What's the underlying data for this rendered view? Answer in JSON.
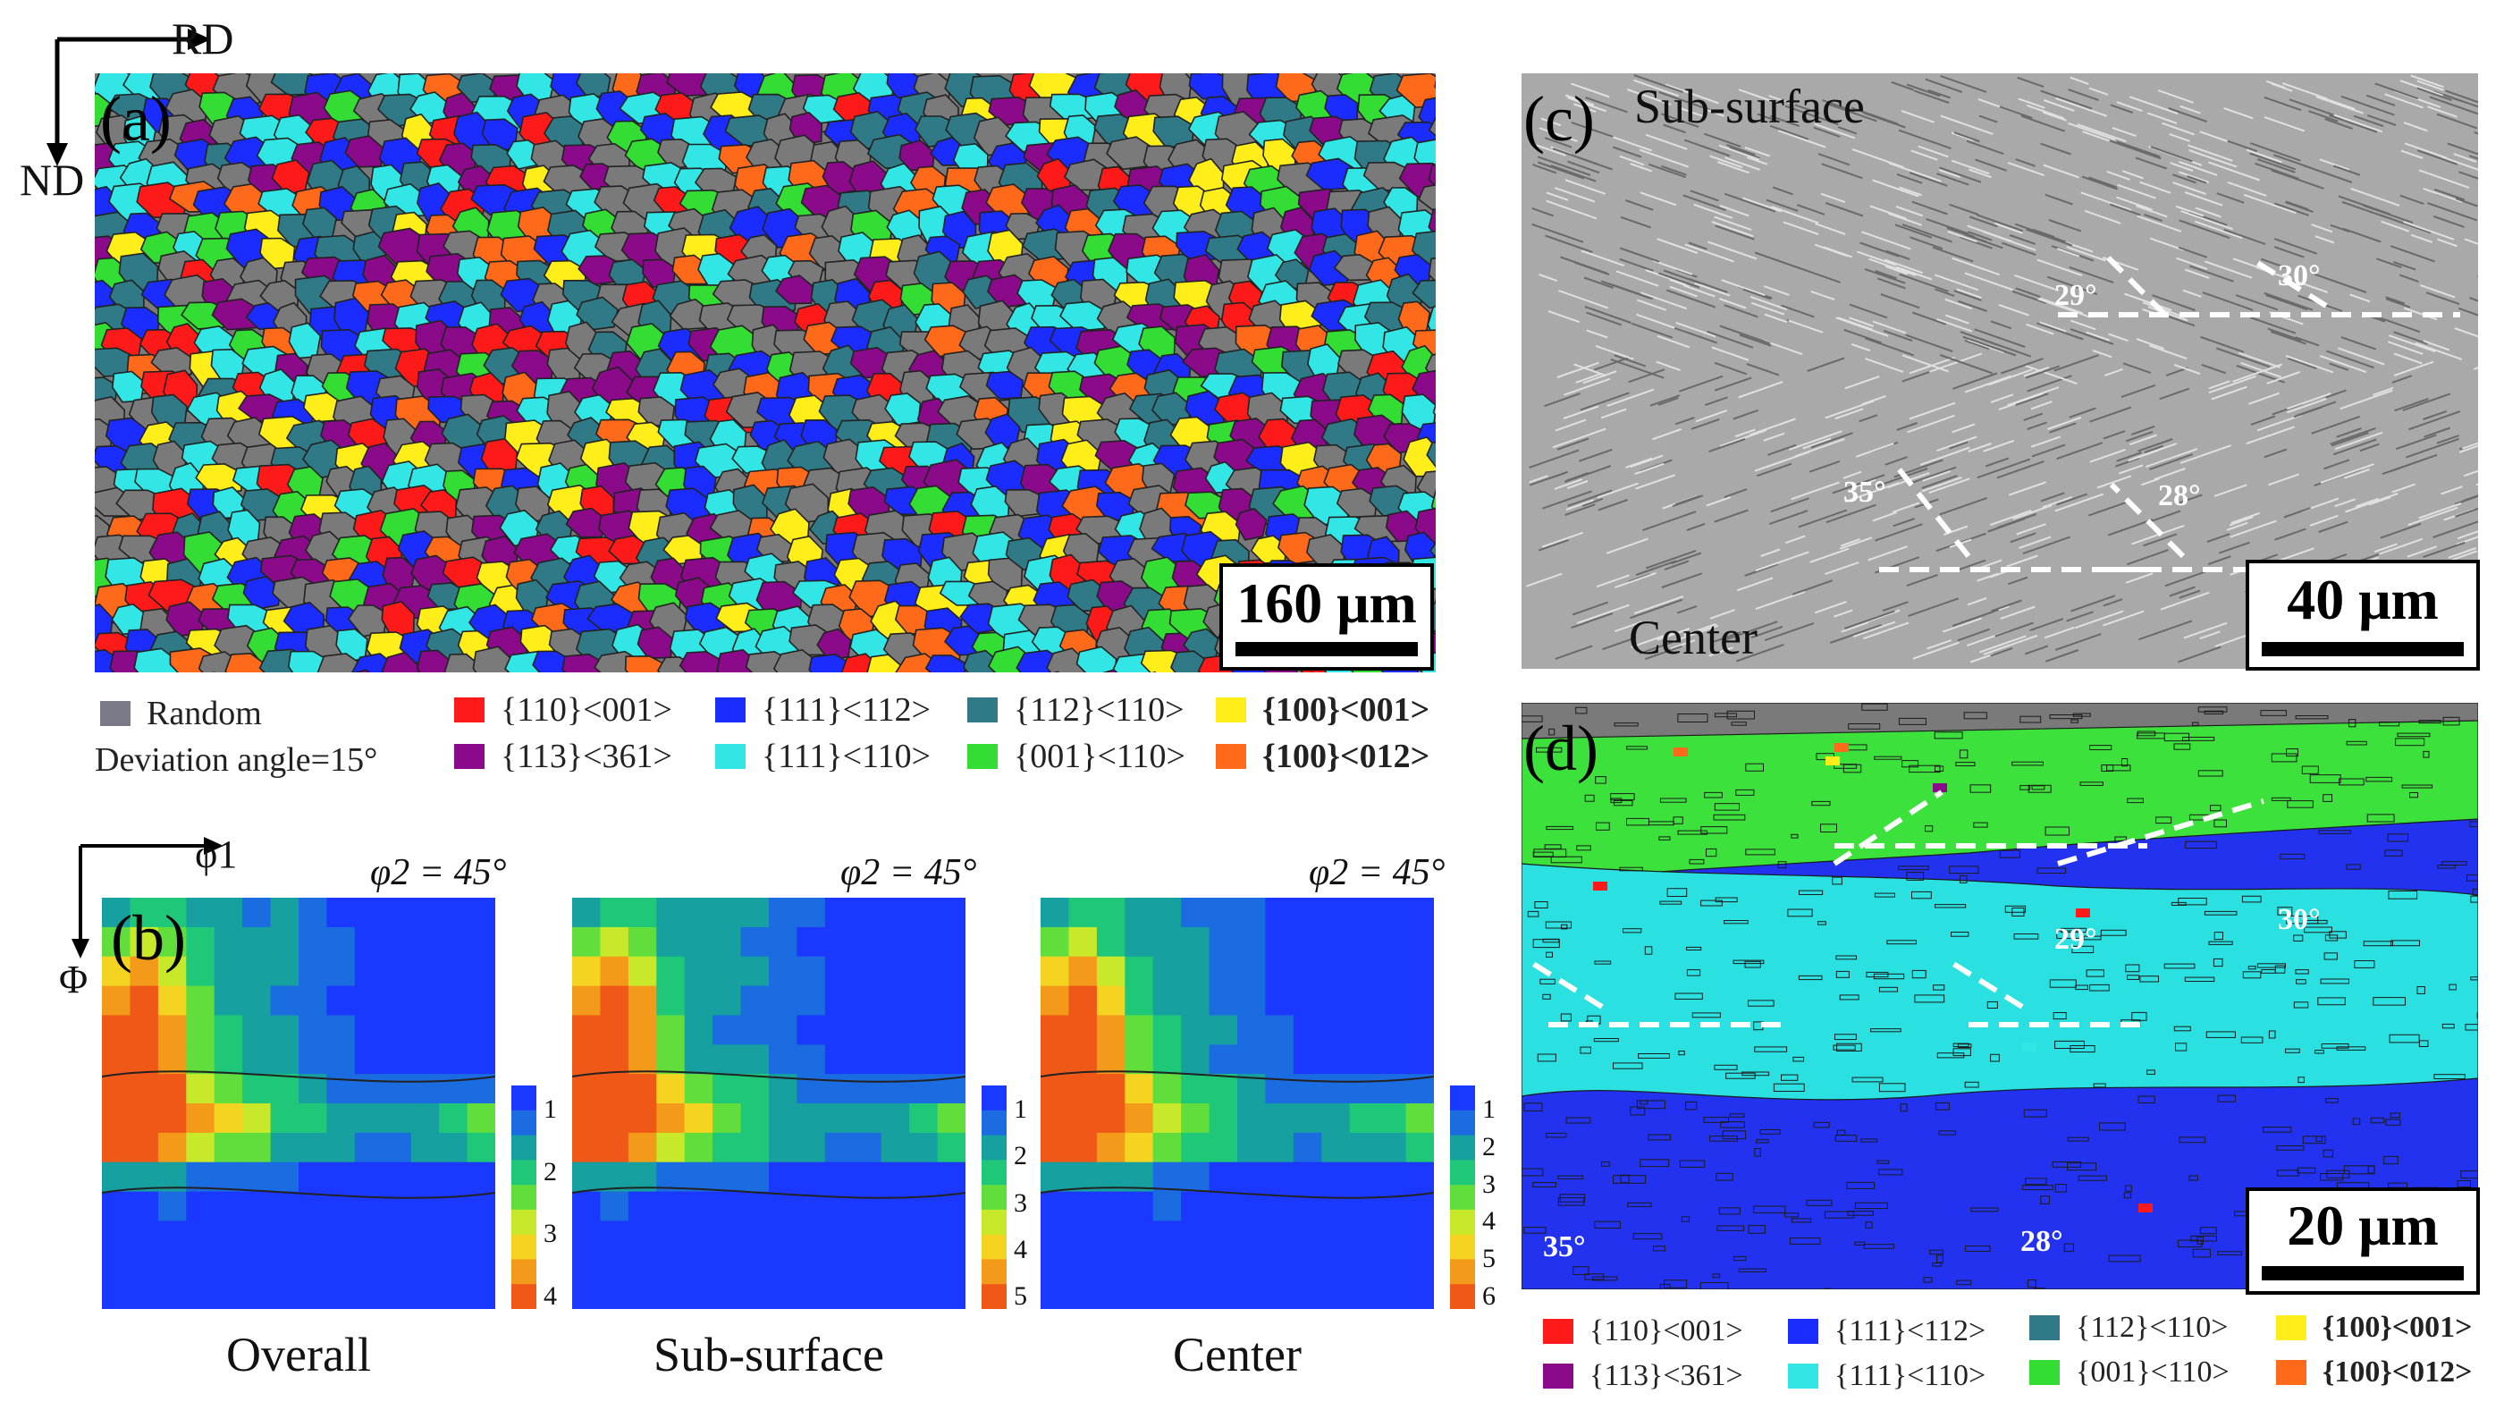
{
  "axes_a": {
    "rd": "RD",
    "nd": "ND"
  },
  "panel_a": {
    "letter": "(a)",
    "scalebar": "160 μm"
  },
  "legend_a": {
    "random": "Random",
    "deviation": "Deviation angle=15°",
    "items": [
      {
        "label": "{110}<001>",
        "color": "#ff1a1a",
        "bold": false
      },
      {
        "label": "{111}<112>",
        "color": "#1a2cff",
        "bold": false
      },
      {
        "label": "{112}<110>",
        "color": "#2f7a86",
        "bold": false
      },
      {
        "label": "{100}<001>",
        "color": "#ffee1a",
        "bold": true
      },
      {
        "label": "{113}<361>",
        "color": "#8a0a8a",
        "bold": false
      },
      {
        "label": "{111}<110>",
        "color": "#33e6e6",
        "bold": false
      },
      {
        "label": "{001}<110>",
        "color": "#33dd33",
        "bold": false
      },
      {
        "label": "{100}<012>",
        "color": "#ff6a1a",
        "bold": true
      }
    ],
    "random_color": "#808090"
  },
  "panel_b": {
    "letter": "(b)",
    "phi1": "φ1",
    "Phi": "Φ",
    "maps": [
      {
        "title": "φ2 = 45°",
        "caption": "Overall",
        "ticks": [
          "1",
          "2",
          "3",
          "4"
        ]
      },
      {
        "title": "φ2 = 45°",
        "caption": "Sub-surface",
        "ticks": [
          "1",
          "2",
          "3",
          "4",
          "5"
        ]
      },
      {
        "title": "φ2 = 45°",
        "caption": "Center",
        "ticks": [
          "1",
          "2",
          "3",
          "4",
          "5",
          "6"
        ]
      }
    ]
  },
  "panel_c": {
    "letter": "(c)",
    "top_label": "Sub-surface",
    "bottom_label": "Center",
    "scalebar": "40 μm",
    "angles": [
      "29°",
      "30°",
      "35°",
      "28°"
    ]
  },
  "panel_d": {
    "letter": "(d)",
    "scalebar": "20 μm",
    "angles": [
      "29°",
      "30°",
      "35°",
      "28°"
    ]
  },
  "legend_d": {
    "items": [
      {
        "label": "{110}<001>",
        "color": "#ff1a1a",
        "bold": false
      },
      {
        "label": "{111}<112>",
        "color": "#1a2cff",
        "bold": false
      },
      {
        "label": "{112}<110>",
        "color": "#2f7a86",
        "bold": false
      },
      {
        "label": "{100}<001>",
        "color": "#ffee1a",
        "bold": true
      },
      {
        "label": "{113}<361>",
        "color": "#8a0a8a",
        "bold": false
      },
      {
        "label": "{111}<110>",
        "color": "#33e6e6",
        "bold": false
      },
      {
        "label": "{001}<110>",
        "color": "#33dd33",
        "bold": false
      },
      {
        "label": "{100}<012>",
        "color": "#ff6a1a",
        "bold": true
      }
    ]
  }
}
